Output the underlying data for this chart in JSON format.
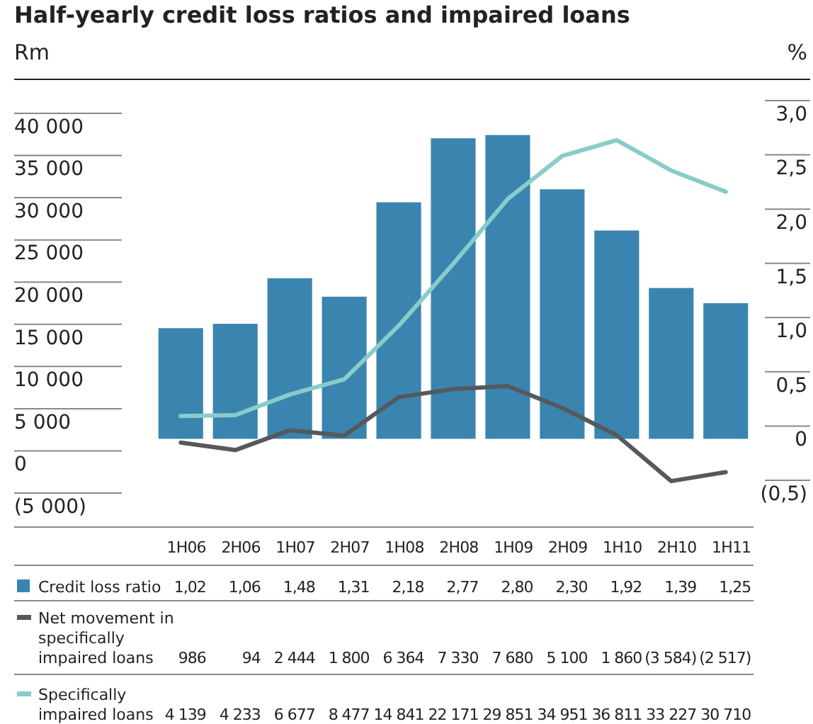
{
  "chart_data": {
    "type": "bar",
    "title": "Half-yearly credit loss ratios and impaired loans",
    "ylabel": "Rm",
    "y2label": "%",
    "categories": [
      "1H06",
      "2H06",
      "1H07",
      "2H07",
      "1H08",
      "2H08",
      "1H09",
      "2H09",
      "1H10",
      "2H10",
      "1H11"
    ],
    "series": [
      {
        "name": "Credit loss ratio",
        "axis": "y2",
        "color": "#3a84b0",
        "values": [
          1.02,
          1.06,
          1.48,
          1.31,
          2.18,
          2.77,
          2.8,
          2.3,
          1.92,
          1.39,
          1.25
        ],
        "value_labels": [
          "1,02",
          "1,06",
          "1,48",
          "1,31",
          "2,18",
          "2,77",
          "2,80",
          "2,30",
          "1,92",
          "1,39",
          "1,25"
        ]
      },
      {
        "name": "Net movement in specifically impaired loans",
        "type": "line",
        "color": "#55595c",
        "values": [
          986,
          94,
          2444,
          1800,
          6364,
          7330,
          7680,
          5100,
          1860,
          -3584,
          -2517
        ],
        "value_labels": [
          "986",
          "94",
          "2 444",
          "1 800",
          "6 364",
          "7 330",
          "7 680",
          "5 100",
          "1 860",
          "(3 584)",
          "(2 517)"
        ]
      },
      {
        "name": "Specifically impaired loans",
        "type": "line",
        "color": "#88ccc9",
        "values": [
          4139,
          4233,
          6677,
          8477,
          14841,
          22171,
          29851,
          34951,
          36811,
          33227,
          30710
        ],
        "value_labels": [
          "4 139",
          "4 233",
          "6 677",
          "8 477",
          "14 841",
          "22 171",
          "29 851",
          "34 951",
          "36 811",
          "33 227",
          "30 710"
        ]
      }
    ],
    "ylim": [
      -5000,
      40000
    ],
    "yticks": [
      {
        "value": 40000,
        "label": "40 000"
      },
      {
        "value": 35000,
        "label": "35 000"
      },
      {
        "value": 30000,
        "label": "30 000"
      },
      {
        "value": 25000,
        "label": "25 000"
      },
      {
        "value": 20000,
        "label": "20 000"
      },
      {
        "value": 15000,
        "label": "15 000"
      },
      {
        "value": 10000,
        "label": "10 000"
      },
      {
        "value": 5000,
        "label": "5 000"
      },
      0,
      {
        "value": -5000,
        "label": "(5 000)"
      }
    ],
    "y2lim": [
      -0.5,
      3.0
    ],
    "y2ticks": [
      {
        "value": 3.0,
        "label": "3,0"
      },
      {
        "value": 2.5,
        "label": "2,5"
      },
      {
        "value": 2.0,
        "label": "2,0"
      },
      {
        "value": 1.5,
        "label": "1,5"
      },
      {
        "value": 1.0,
        "label": "1,0"
      },
      {
        "value": 0.5,
        "label": "0,5"
      },
      0,
      {
        "value": -0.5,
        "label": "(0,5)"
      }
    ],
    "grid": false,
    "legend": "bottom"
  }
}
